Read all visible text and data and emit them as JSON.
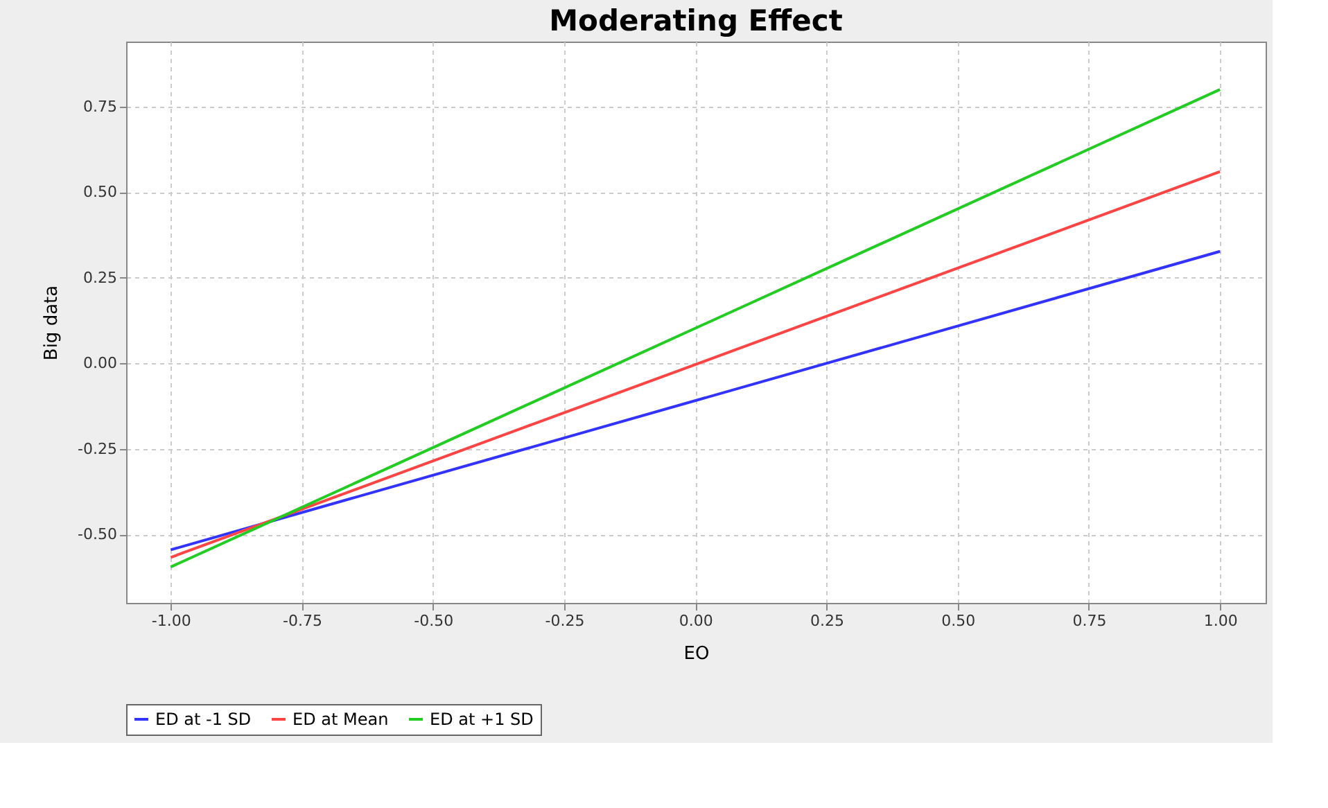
{
  "chart_data": {
    "type": "line",
    "title": "Moderating Effect",
    "xlabel": "EO",
    "ylabel": "Big data",
    "x": [
      -1.0,
      1.0
    ],
    "series": [
      {
        "name": "ED at -1 SD",
        "color": "#3333ff",
        "values": [
          -0.545,
          0.327
        ]
      },
      {
        "name": "ED at Mean",
        "color": "#ff4444",
        "values": [
          -0.567,
          0.56
        ]
      },
      {
        "name": "ED at +1 SD",
        "color": "#22cc22",
        "values": [
          -0.595,
          0.8
        ]
      }
    ],
    "xlim": [
      -1.085,
      1.087
    ],
    "xticks": [
      {
        "value": -1,
        "label": "-1.00"
      },
      {
        "value": -0.75,
        "label": "-0.75"
      },
      {
        "value": -0.5,
        "label": "-0.50"
      },
      {
        "value": -0.25,
        "label": "-0.25"
      },
      {
        "value": 0,
        "label": "0.00"
      },
      {
        "value": 0.25,
        "label": "0.25"
      },
      {
        "value": 0.5,
        "label": "0.50"
      },
      {
        "value": 0.75,
        "label": "0.75"
      },
      {
        "value": 1,
        "label": "1.00"
      }
    ],
    "ylim": [
      -0.7,
      0.94
    ],
    "yticks": [
      {
        "value": -0.5,
        "label": "-0.50"
      },
      {
        "value": -0.25,
        "label": "-0.25"
      },
      {
        "value": 0,
        "label": "0.00"
      },
      {
        "value": 0.25,
        "label": "0.25"
      },
      {
        "value": 0.5,
        "label": "0.50"
      },
      {
        "value": 0.75,
        "label": "0.75"
      }
    ],
    "grid": true,
    "legend": "bottom",
    "marker": "none",
    "line_style": "solid"
  }
}
